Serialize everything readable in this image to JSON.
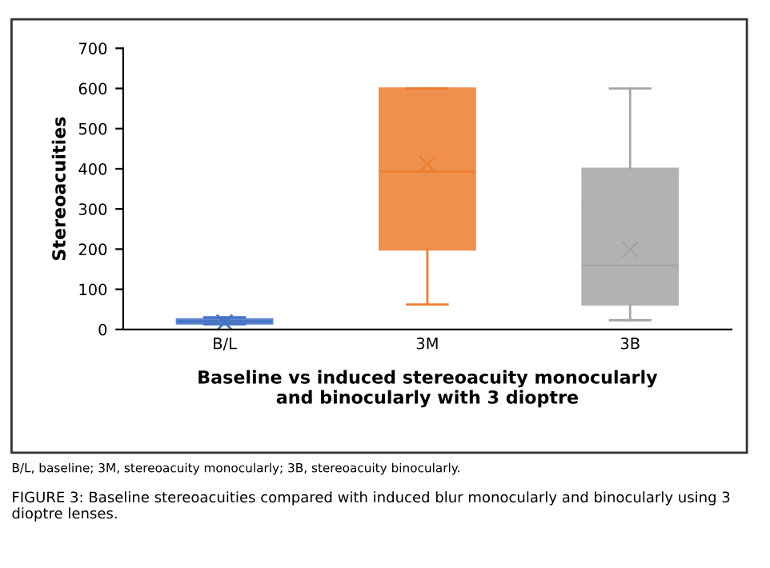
{
  "chart_data": {
    "type": "box",
    "categories": [
      "B/L",
      "3M",
      "3B"
    ],
    "boxes": [
      {
        "low": 13,
        "q1": 15,
        "median": 20,
        "q3": 25,
        "high": 30,
        "mean": 17
      },
      {
        "low": 62,
        "q1": 199,
        "median": 393,
        "q3": 600,
        "high": 600,
        "mean": 411
      },
      {
        "low": 23,
        "q1": 62,
        "median": 159,
        "q3": 400,
        "high": 600,
        "mean": 199
      }
    ],
    "colors": [
      "#4472c4",
      "#ed7d31",
      "#a5a5a5"
    ],
    "ylabel": "Stereoacuities",
    "xlabel": "Baseline vs induced stereoacuity monocularly\nand binocularly with 3 dioptre",
    "ylim": [
      0,
      700
    ],
    "yticks": [
      0,
      100,
      200,
      300,
      400,
      500,
      600,
      700
    ],
    "grid": false,
    "legend": false,
    "annotations": [
      "B/L, baseline; 3M, stereoacuity monocularly; 3B, stereoacuity binocularly.",
      "FIGURE 3: Baseline stereoacuities compared with induced blur monocularly and binocularly using 3 dioptre lenses."
    ]
  }
}
